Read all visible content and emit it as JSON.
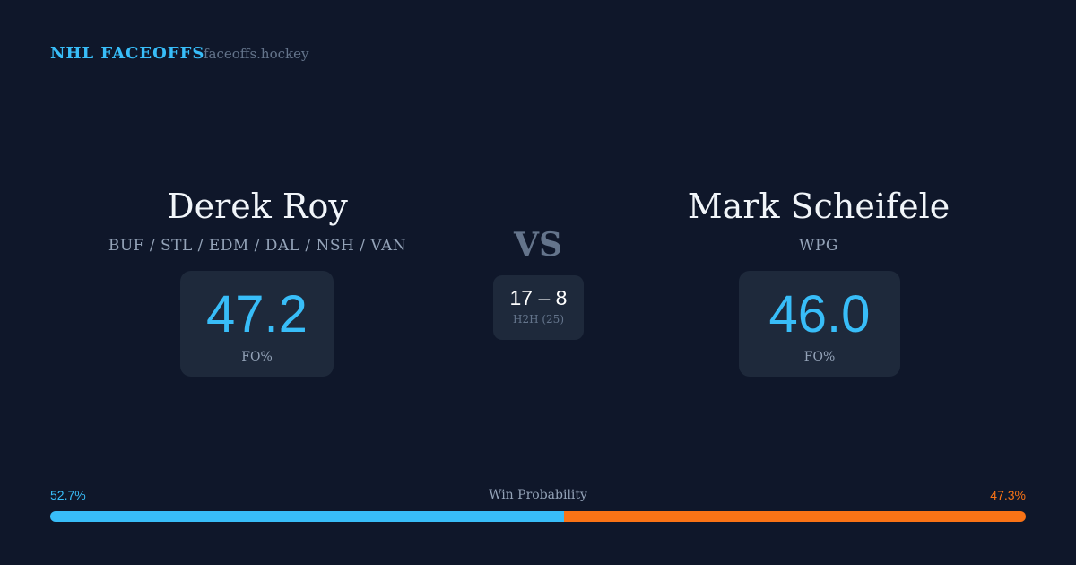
{
  "header": {
    "brand": "NHL FACEOFFS",
    "site": "faceoffs.hockey"
  },
  "left": {
    "name": "Derek Roy",
    "teams": "BUF / STL / EDM / DAL / NSH / VAN",
    "fo_pct": "47.2",
    "fo_label": "FO%"
  },
  "right": {
    "name": "Mark Scheifele",
    "teams": "WPG",
    "fo_pct": "46.0",
    "fo_label": "FO%"
  },
  "vs": "VS",
  "h2h": {
    "score": "17 – 8",
    "label": "H2H (25)"
  },
  "win": {
    "title": "Win Probability",
    "left_pct": "52.7%",
    "right_pct": "47.3%",
    "left_value": 52.7,
    "right_value": 47.3,
    "left_color": "#38bdf8",
    "right_color": "#f97316"
  }
}
